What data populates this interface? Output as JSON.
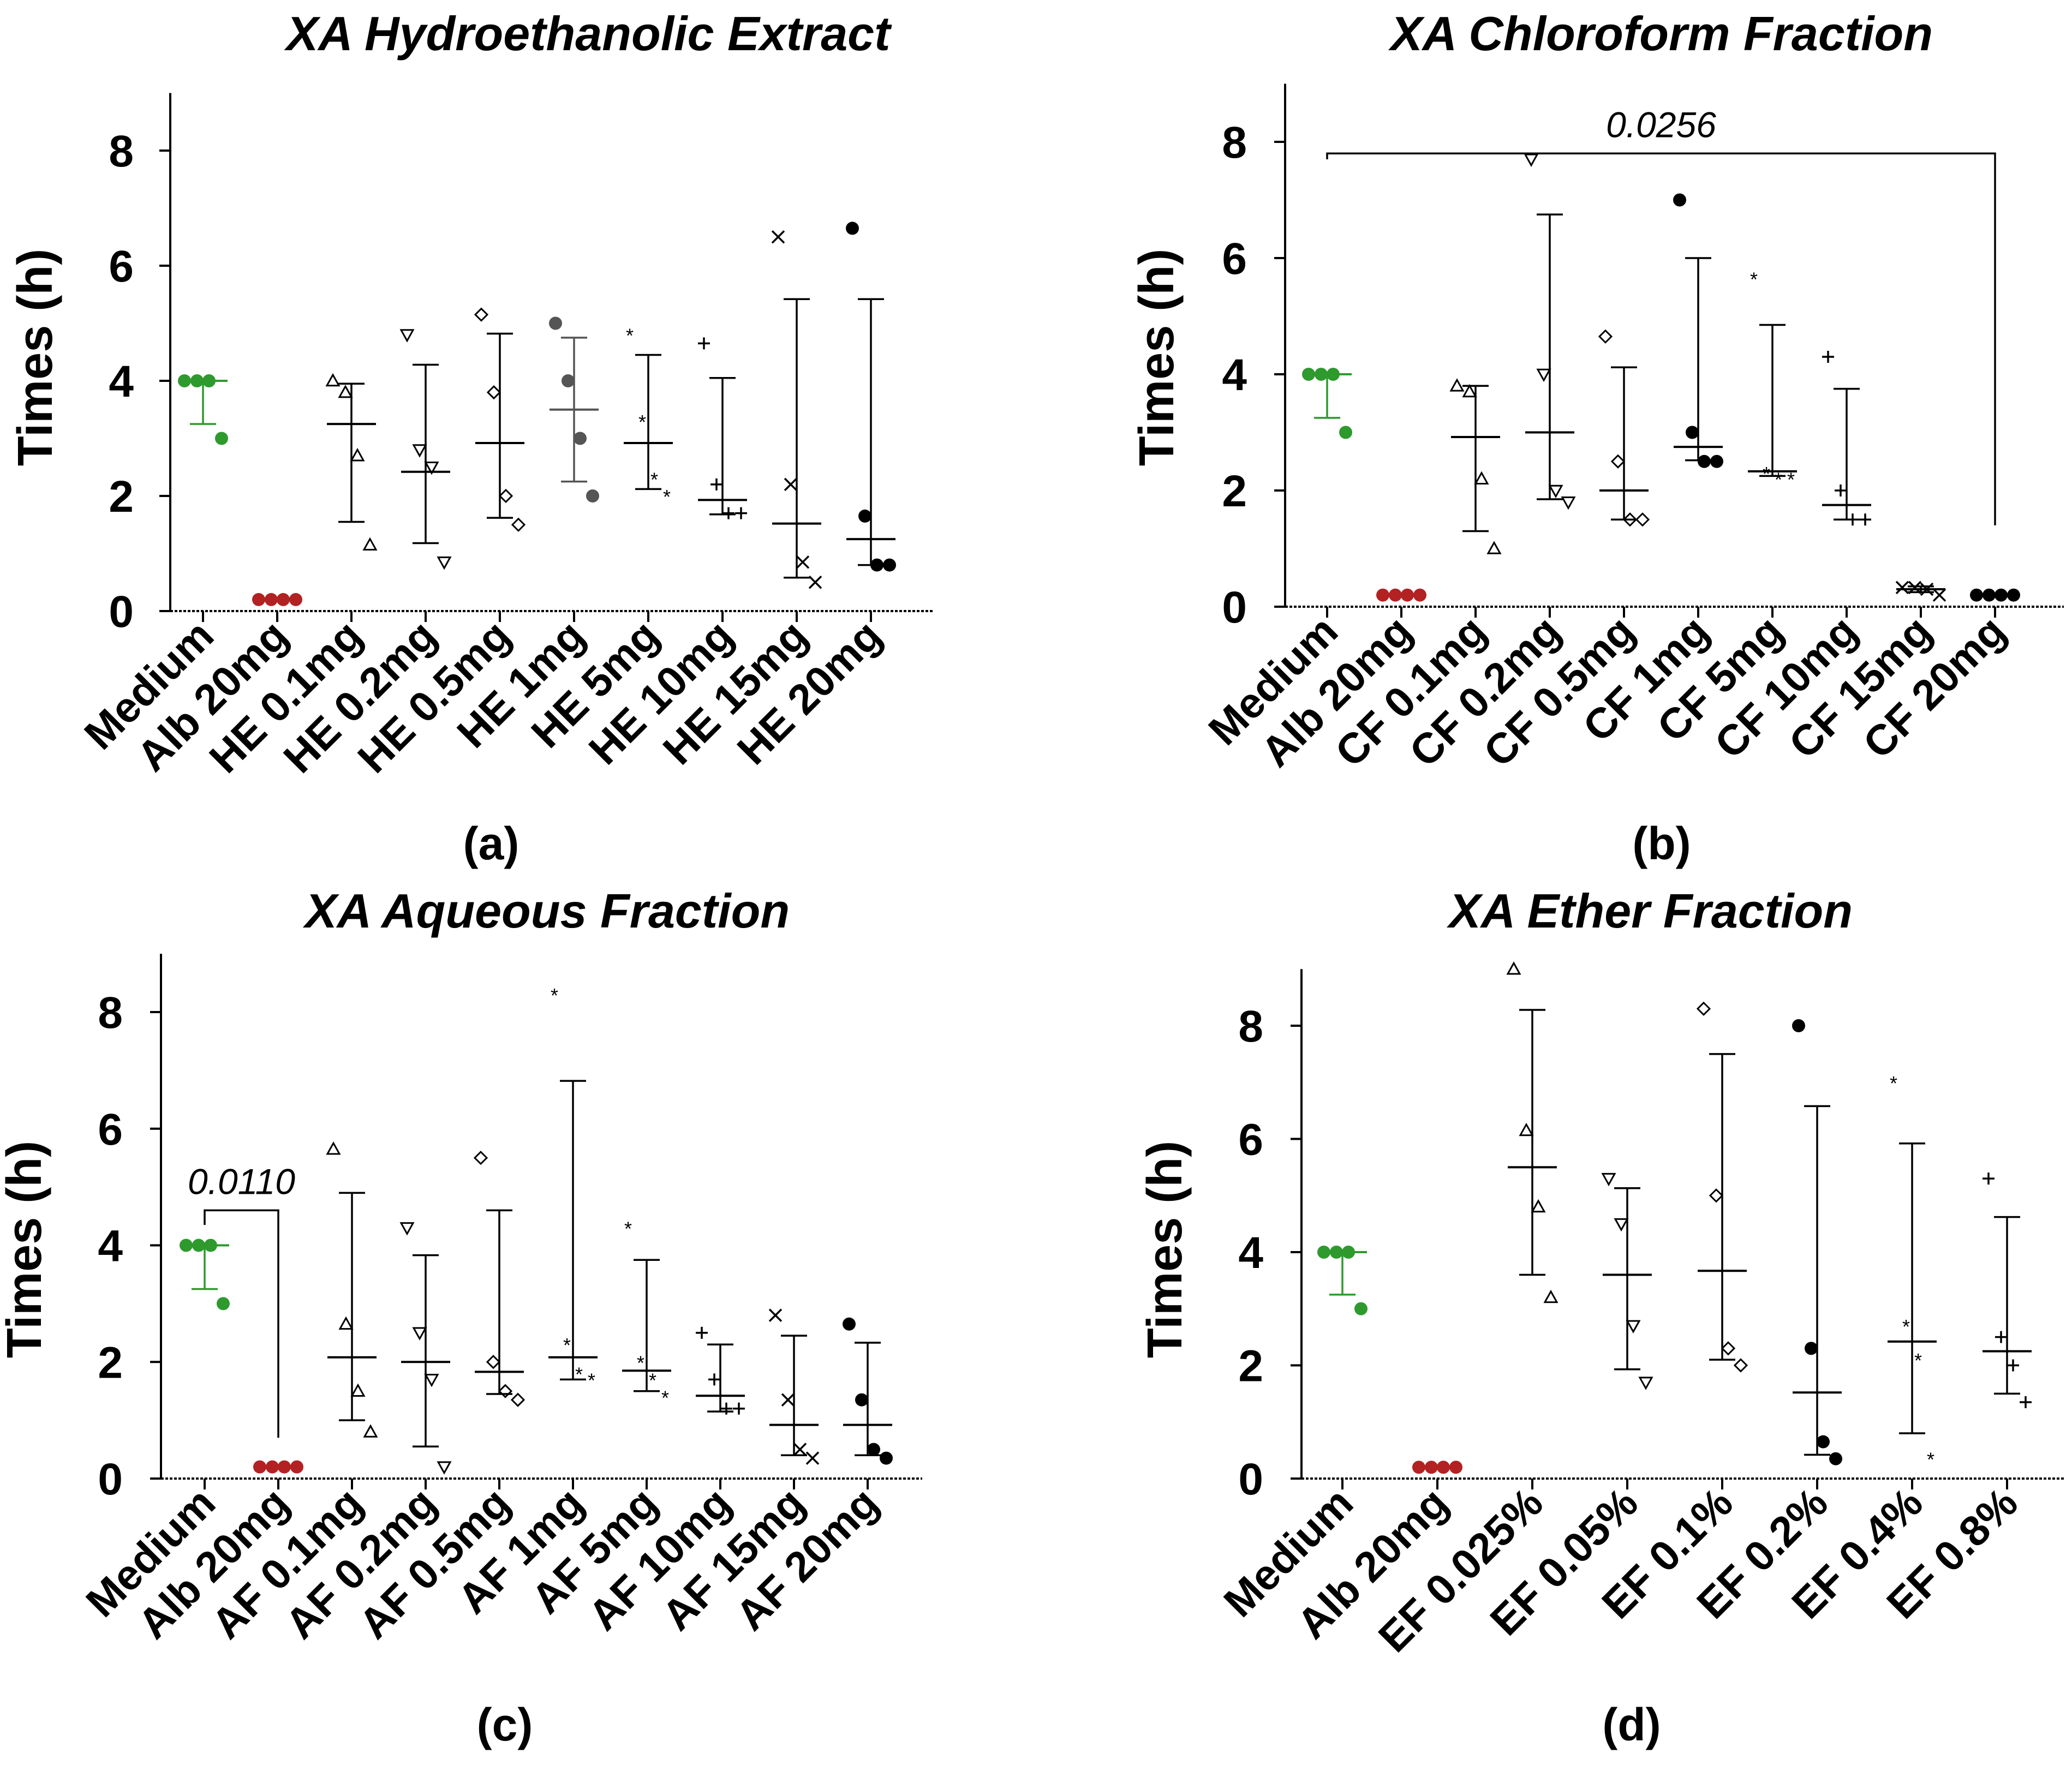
{
  "figure": {
    "panel_labels": [
      "(a)",
      "(b)",
      "(c)",
      "(d)"
    ]
  },
  "chart_data": [
    {
      "type": "scatter",
      "title": "XA Hydroethanolic Extract",
      "panel_label": "(a)",
      "ylabel": "Times (h)",
      "xlabel": "",
      "ylim": [
        0,
        9
      ],
      "yticks": [
        0,
        2,
        4,
        6,
        8
      ],
      "categories": [
        "Medium",
        "Alb 20mg",
        "HE 0.1mg",
        "HE 0.2mg",
        "HE 0.5mg",
        "HE 1mg",
        "HE 5mg",
        "HE 10mg",
        "HE 15mg",
        "HE 20mg"
      ],
      "markers": [
        "dot",
        "dot",
        "triangle",
        "triangle-down",
        "diamond",
        "dot",
        "star",
        "plus",
        "cross",
        "dot"
      ],
      "colors": [
        "#2e9a2e",
        "#b22222",
        "#000000",
        "#000000",
        "#000000",
        "#555555",
        "#000000",
        "#000000",
        "#000000",
        "#000000"
      ],
      "points": [
        [
          4,
          4,
          4,
          3
        ],
        [
          0.2,
          0.2,
          0.2,
          0.2
        ],
        [
          4,
          3.8,
          2.7,
          1.15
        ],
        [
          4.8,
          2.8,
          2.5,
          0.85
        ],
        [
          5.15,
          3.8,
          2.0,
          1.5
        ],
        [
          5.0,
          4.0,
          3.0,
          2.0
        ],
        [
          4.8,
          3.3,
          2.3,
          2.0
        ],
        [
          4.65,
          2.2,
          1.7,
          1.7
        ],
        [
          6.5,
          2.2,
          0.85,
          0.5
        ],
        [
          6.65,
          1.65,
          0.8,
          0.8
        ]
      ],
      "mean": [
        4.0,
        0.2,
        3.25,
        2.42,
        2.92,
        3.5,
        2.92,
        1.93,
        1.52,
        1.25
      ],
      "err_low": [
        3.25,
        0.2,
        1.55,
        1.18,
        1.62,
        2.25,
        2.12,
        1.68,
        0.58,
        0.8
      ],
      "err_high": [
        4.0,
        0.2,
        3.95,
        4.28,
        4.82,
        4.75,
        4.45,
        4.05,
        5.42,
        5.42
      ],
      "annotations": []
    },
    {
      "type": "scatter",
      "title": "XA Chloroform Fraction",
      "panel_label": "(b)",
      "ylabel": "Times (h)",
      "xlabel": "",
      "ylim": [
        0,
        9
      ],
      "yticks": [
        0,
        2,
        4,
        6,
        8
      ],
      "categories": [
        "Medium",
        "Alb 20mg",
        "CF 0.1mg",
        "CF 0.2mg",
        "CF 0.5mg",
        "CF 1mg",
        "CF 5mg",
        "CF 10mg",
        "CF 15mg",
        "CF 20mg"
      ],
      "markers": [
        "dot",
        "dot",
        "triangle",
        "triangle-down",
        "diamond",
        "dot",
        "star",
        "plus",
        "cross",
        "dot"
      ],
      "colors": [
        "#2e9a2e",
        "#b22222",
        "#000000",
        "#000000",
        "#000000",
        "#000000",
        "#000000",
        "#000000",
        "#000000",
        "#000000"
      ],
      "points": [
        [
          4,
          4,
          4,
          3
        ],
        [
          0.2,
          0.2,
          0.2,
          0.2
        ],
        [
          3.8,
          3.7,
          2.2,
          1.0
        ],
        [
          7.7,
          4.0,
          2.0,
          1.8
        ],
        [
          4.65,
          2.5,
          1.5,
          1.5
        ],
        [
          7.0,
          3.0,
          2.5,
          2.5
        ],
        [
          5.65,
          2.3,
          2.2,
          2.2
        ],
        [
          4.3,
          2.0,
          1.5,
          1.5
        ],
        [
          0.33,
          0.33,
          0.3,
          0.2
        ],
        [
          0.2,
          0.2,
          0.2,
          0.2
        ]
      ],
      "mean": [
        4.0,
        0.2,
        2.92,
        3.0,
        2.0,
        2.75,
        2.33,
        1.75,
        0.3,
        0.2
      ],
      "err_low": [
        3.25,
        0.2,
        1.3,
        1.85,
        1.5,
        2.52,
        2.25,
        1.5,
        0.25,
        0.2
      ],
      "err_high": [
        4.0,
        0.2,
        3.8,
        6.75,
        4.12,
        6.0,
        4.85,
        3.75,
        0.35,
        0.2
      ],
      "annotations": [
        {
          "text": "0.0256",
          "from_index": 0,
          "to_index": 9,
          "y": 7.8,
          "left_end": 7.7,
          "right_end": 1.4
        }
      ]
    },
    {
      "type": "scatter",
      "title": "XA Aqueous Fraction",
      "panel_label": "(c)",
      "ylabel": "Times (h)",
      "xlabel": "",
      "ylim": [
        0,
        9
      ],
      "yticks": [
        0,
        2,
        4,
        6,
        8
      ],
      "categories": [
        "Medium",
        "Alb 20mg",
        "AF 0.1mg",
        "AF 0.2mg",
        "AF 0.5mg",
        "AF 1mg",
        "AF 5mg",
        "AF 10mg",
        "AF 15mg",
        "AF 20mg"
      ],
      "markers": [
        "dot",
        "dot",
        "triangle",
        "triangle-down",
        "diamond",
        "star",
        "star",
        "plus",
        "cross",
        "dot"
      ],
      "colors": [
        "#2e9a2e",
        "#b22222",
        "#000000",
        "#000000",
        "#000000",
        "#000000",
        "#000000",
        "#000000",
        "#000000",
        "#000000"
      ],
      "points": [
        [
          4,
          4,
          4,
          3
        ],
        [
          0.2,
          0.2,
          0.2,
          0.2
        ],
        [
          5.65,
          2.65,
          1.5,
          0.8
        ],
        [
          4.3,
          2.5,
          1.7,
          0.2
        ],
        [
          5.5,
          2.0,
          1.5,
          1.35
        ],
        [
          8.3,
          2.3,
          1.8,
          1.7
        ],
        [
          4.3,
          2.0,
          1.7,
          1.4
        ],
        [
          2.5,
          1.7,
          1.2,
          1.2
        ],
        [
          2.8,
          1.35,
          0.5,
          0.35
        ],
        [
          2.65,
          1.35,
          0.5,
          0.35
        ]
      ],
      "mean": [
        4.0,
        0.2,
        2.08,
        2.0,
        1.83,
        2.08,
        1.85,
        1.42,
        0.92,
        0.92
      ],
      "err_low": [
        3.25,
        0.2,
        1.0,
        0.55,
        1.45,
        1.7,
        1.5,
        1.15,
        0.4,
        0.4
      ],
      "err_high": [
        4.0,
        0.2,
        4.9,
        3.83,
        4.6,
        6.82,
        3.75,
        2.3,
        2.45,
        2.33
      ],
      "annotations": [
        {
          "text": "0.0110",
          "from_index": 0,
          "to_index": 1,
          "y": 4.6,
          "left_end": 4.35,
          "right_end": 0.7
        }
      ]
    },
    {
      "type": "scatter",
      "title": "XA Ether Fraction",
      "panel_label": "(d)",
      "ylabel": "Times (h)",
      "xlabel": "",
      "ylim": [
        0,
        9
      ],
      "yticks": [
        0,
        2,
        4,
        6,
        8
      ],
      "categories": [
        "Medium",
        "Alb 20mg",
        "EF 0.025%",
        "EF 0.05%",
        "EF 0.1%",
        "EF 0.2%",
        "EF 0.4%",
        "EF 0.8%"
      ],
      "markers": [
        "dot",
        "dot",
        "triangle",
        "triangle-down",
        "diamond",
        "dot",
        "star",
        "plus"
      ],
      "colors": [
        "#2e9a2e",
        "#b22222",
        "#000000",
        "#000000",
        "#000000",
        "#000000",
        "#000000",
        "#000000"
      ],
      "points": [
        [
          4,
          4,
          4,
          3
        ],
        [
          0.2,
          0.2,
          0.2,
          0.2
        ],
        [
          9.0,
          6.15,
          4.8,
          3.2
        ],
        [
          5.3,
          4.5,
          2.7,
          1.7
        ],
        [
          8.3,
          5.0,
          2.3,
          2.0
        ],
        [
          8.0,
          2.3,
          0.65,
          0.35
        ],
        [
          7.0,
          2.7,
          2.1,
          0.35
        ],
        [
          5.3,
          2.5,
          2.0,
          1.35
        ]
      ],
      "mean": [
        4.0,
        0.2,
        5.5,
        3.6,
        3.67,
        1.52,
        2.42,
        2.25
      ],
      "err_low": [
        3.25,
        0.2,
        3.6,
        1.93,
        2.1,
        0.42,
        0.8,
        1.5
      ],
      "err_high": [
        4.0,
        0.2,
        8.28,
        5.13,
        7.5,
        6.58,
        5.92,
        4.62
      ],
      "annotations": []
    }
  ]
}
